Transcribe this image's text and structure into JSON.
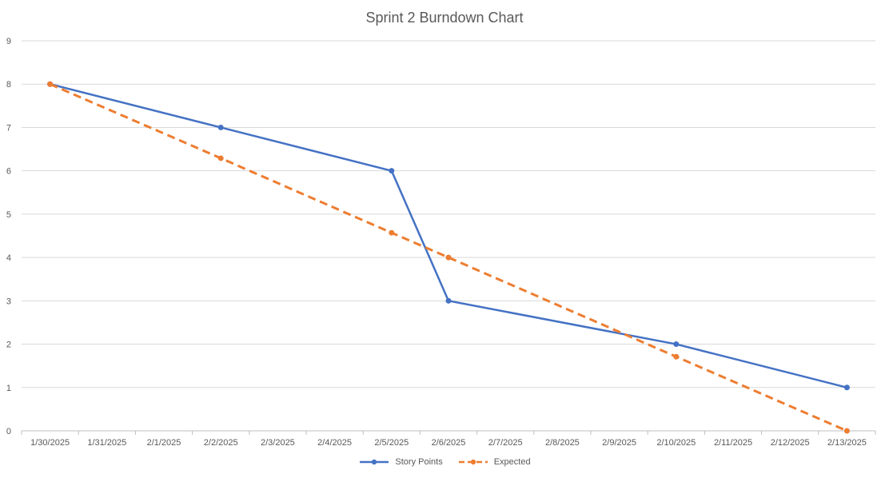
{
  "chart_data": {
    "type": "line",
    "title": "Sprint 2 Burndown Chart",
    "xlabel": "",
    "ylabel": "",
    "categories": [
      "1/30/2025",
      "1/31/2025",
      "2/1/2025",
      "2/2/2025",
      "2/3/2025",
      "2/4/2025",
      "2/5/2025",
      "2/6/2025",
      "2/7/2025",
      "2/8/2025",
      "2/9/2025",
      "2/10/2025",
      "2/11/2025",
      "2/12/2025",
      "2/13/2025"
    ],
    "ylim": [
      0,
      9
    ],
    "yticks": [
      0,
      1,
      2,
      3,
      4,
      5,
      6,
      7,
      8,
      9
    ],
    "grid": true,
    "legend_position": "bottom",
    "series": [
      {
        "name": "Story Points",
        "color": "#4472C4",
        "dash": "solid",
        "points": [
          {
            "x": "1/30/2025",
            "y": 8
          },
          {
            "x": "2/2/2025",
            "y": 7
          },
          {
            "x": "2/5/2025",
            "y": 6
          },
          {
            "x": "2/6/2025",
            "y": 3
          },
          {
            "x": "2/10/2025",
            "y": 2
          },
          {
            "x": "2/13/2025",
            "y": 1
          }
        ]
      },
      {
        "name": "Expected",
        "color": "#ED7D31",
        "dash": "dashed",
        "points": [
          {
            "x": "1/30/2025",
            "y": 8
          },
          {
            "x": "2/2/2025",
            "y": 6.29
          },
          {
            "x": "2/5/2025",
            "y": 4.57
          },
          {
            "x": "2/6/2025",
            "y": 4
          },
          {
            "x": "2/10/2025",
            "y": 1.71
          },
          {
            "x": "2/13/2025",
            "y": 0
          }
        ]
      }
    ]
  }
}
